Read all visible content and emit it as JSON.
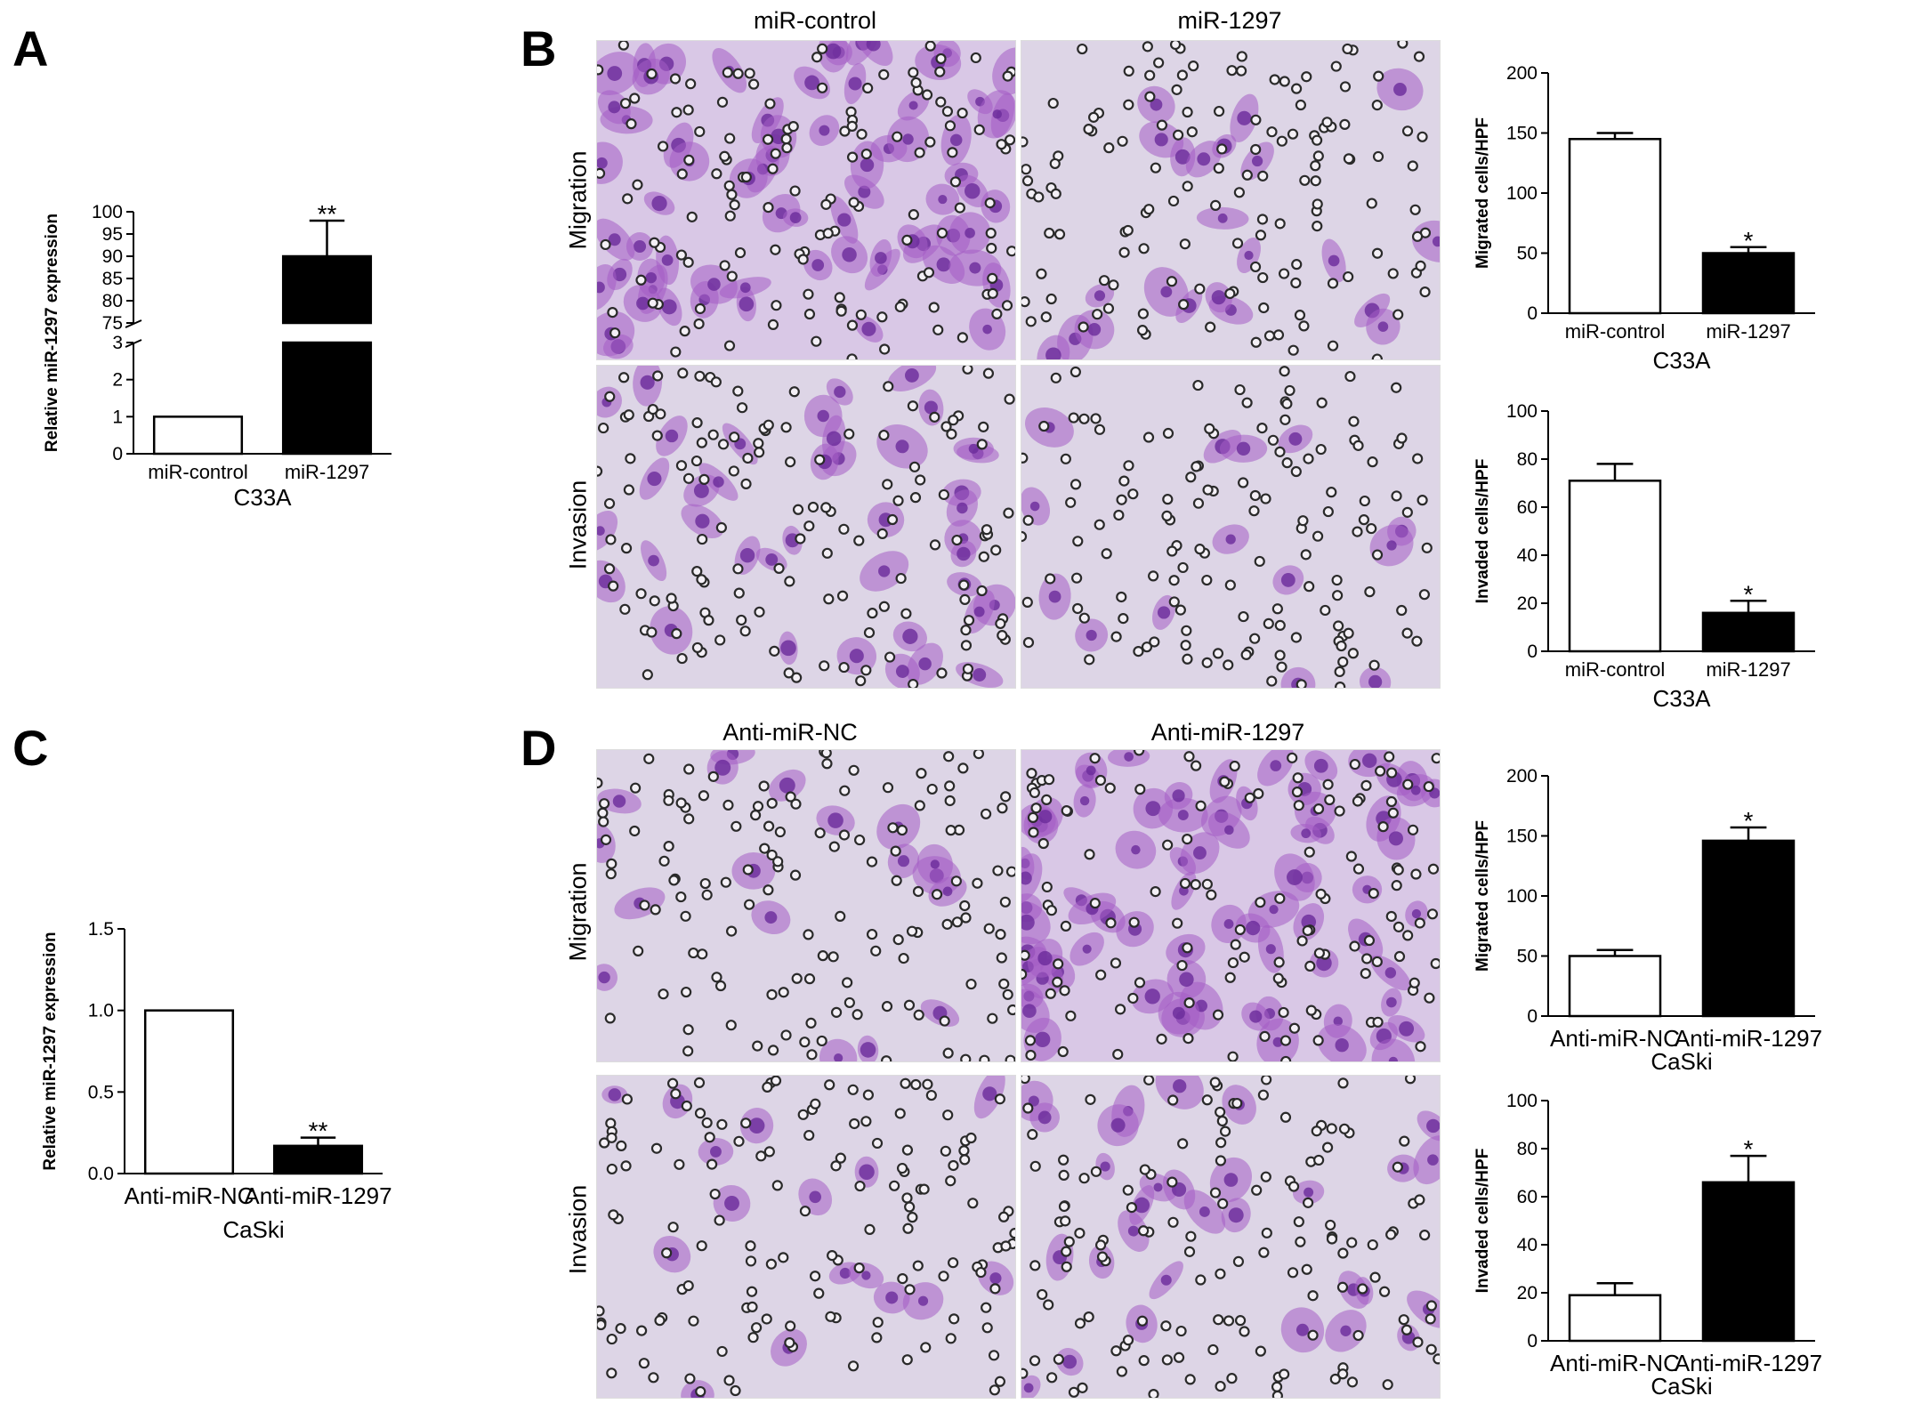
{
  "panels": {
    "A": "A",
    "B": "B",
    "C": "C",
    "D": "D"
  },
  "images": {
    "B": {
      "col1": "miR-control",
      "col2": "miR-1297",
      "row1": "Migration",
      "row2": "Invasion"
    },
    "D": {
      "col1": "Anti-miR-NC",
      "col2": "Anti-miR-1297",
      "row1": "Migration",
      "row2": "Invasion"
    }
  },
  "colors": {
    "stain": "#a45cc4",
    "nucleus": "#6a2b9a",
    "background_B": "#d9c8e6",
    "background_D": "#ddd5e6"
  },
  "chart_data": [
    {
      "id": "A",
      "type": "bar",
      "categories": [
        "miR-control",
        "miR-1297"
      ],
      "values": [
        1,
        90
      ],
      "errors": [
        0,
        8
      ],
      "significance": [
        "",
        "**"
      ],
      "fills": [
        "#ffffff",
        "#000000"
      ],
      "ylabel": "Relative miR-1297 expression",
      "xlabel": "C33A",
      "ylim": [
        0,
        100
      ],
      "axis_break": [
        3,
        75
      ],
      "ticks_low": [
        "0",
        "1",
        "2",
        "3"
      ],
      "ticks_high": [
        "75",
        "80",
        "85",
        "90",
        "95",
        "100"
      ]
    },
    {
      "id": "B-migration",
      "type": "bar",
      "categories": [
        "miR-control",
        "miR-1297"
      ],
      "values": [
        145,
        50
      ],
      "errors": [
        5,
        5
      ],
      "significance": [
        "",
        "*"
      ],
      "fills": [
        "#ffffff",
        "#000000"
      ],
      "ylabel": "Migrated cells/HPF",
      "xlabel": "C33A",
      "ylim": [
        0,
        200
      ],
      "ticks": [
        "0",
        "50",
        "100",
        "150",
        "200"
      ]
    },
    {
      "id": "B-invasion",
      "type": "bar",
      "categories": [
        "miR-control",
        "miR-1297"
      ],
      "values": [
        71,
        16
      ],
      "errors": [
        7,
        5
      ],
      "significance": [
        "",
        "*"
      ],
      "fills": [
        "#ffffff",
        "#000000"
      ],
      "ylabel": "Invaded cells/HPF",
      "xlabel": "C33A",
      "ylim": [
        0,
        100
      ],
      "ticks": [
        "0",
        "20",
        "40",
        "60",
        "80",
        "100"
      ]
    },
    {
      "id": "C",
      "type": "bar",
      "categories": [
        "Anti-miR-NC",
        "Anti-miR-1297"
      ],
      "values": [
        1.0,
        0.17
      ],
      "errors": [
        0,
        0.05
      ],
      "significance": [
        "",
        "**"
      ],
      "fills": [
        "#ffffff",
        "#000000"
      ],
      "ylabel": "Relative miR-1297 expression",
      "xlabel": "CaSki",
      "ylim": [
        0,
        1.5
      ],
      "ticks": [
        "0.0",
        "0.5",
        "1.0",
        "1.5"
      ]
    },
    {
      "id": "D-migration",
      "type": "bar",
      "categories": [
        "Anti-miR-NC",
        "Anti-miR-1297"
      ],
      "values": [
        50,
        146
      ],
      "errors": [
        5,
        11
      ],
      "significance": [
        "",
        "*"
      ],
      "fills": [
        "#ffffff",
        "#000000"
      ],
      "ylabel": "Migrated cells/HPF",
      "xlabel": "CaSki",
      "ylim": [
        0,
        200
      ],
      "ticks": [
        "0",
        "50",
        "100",
        "150",
        "200"
      ]
    },
    {
      "id": "D-invasion",
      "type": "bar",
      "categories": [
        "Anti-miR-NC",
        "Anti-miR-1297"
      ],
      "values": [
        19,
        66
      ],
      "errors": [
        5,
        11
      ],
      "significance": [
        "",
        "*"
      ],
      "fills": [
        "#ffffff",
        "#000000"
      ],
      "ylabel": "Invaded cells/HPF",
      "xlabel": "CaSki",
      "ylim": [
        0,
        100
      ],
      "ticks": [
        "0",
        "20",
        "40",
        "60",
        "80",
        "100"
      ]
    }
  ]
}
